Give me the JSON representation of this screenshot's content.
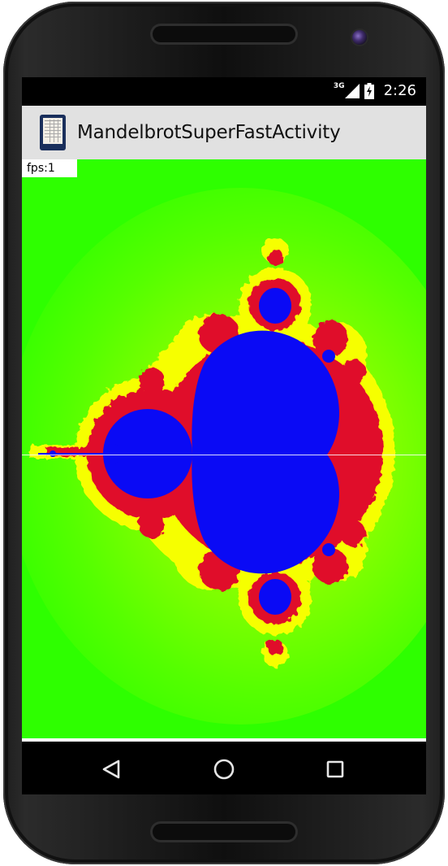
{
  "status_bar": {
    "network_type": "3G",
    "time": "2:26"
  },
  "action_bar": {
    "title": "MandelbrotSuperFastActivity",
    "icon": "app-icon"
  },
  "content": {
    "fps_text": "fps:1"
  },
  "colors": {
    "background_green": "#2eff00",
    "set_blue": "#0a0af5",
    "edge_red": "#e0102a",
    "edge_yellow": "#f6ff00",
    "action_bar_bg": "#e1e1e1"
  },
  "nav_bar": {
    "buttons": [
      "back-icon",
      "home-icon",
      "recents-icon"
    ]
  }
}
